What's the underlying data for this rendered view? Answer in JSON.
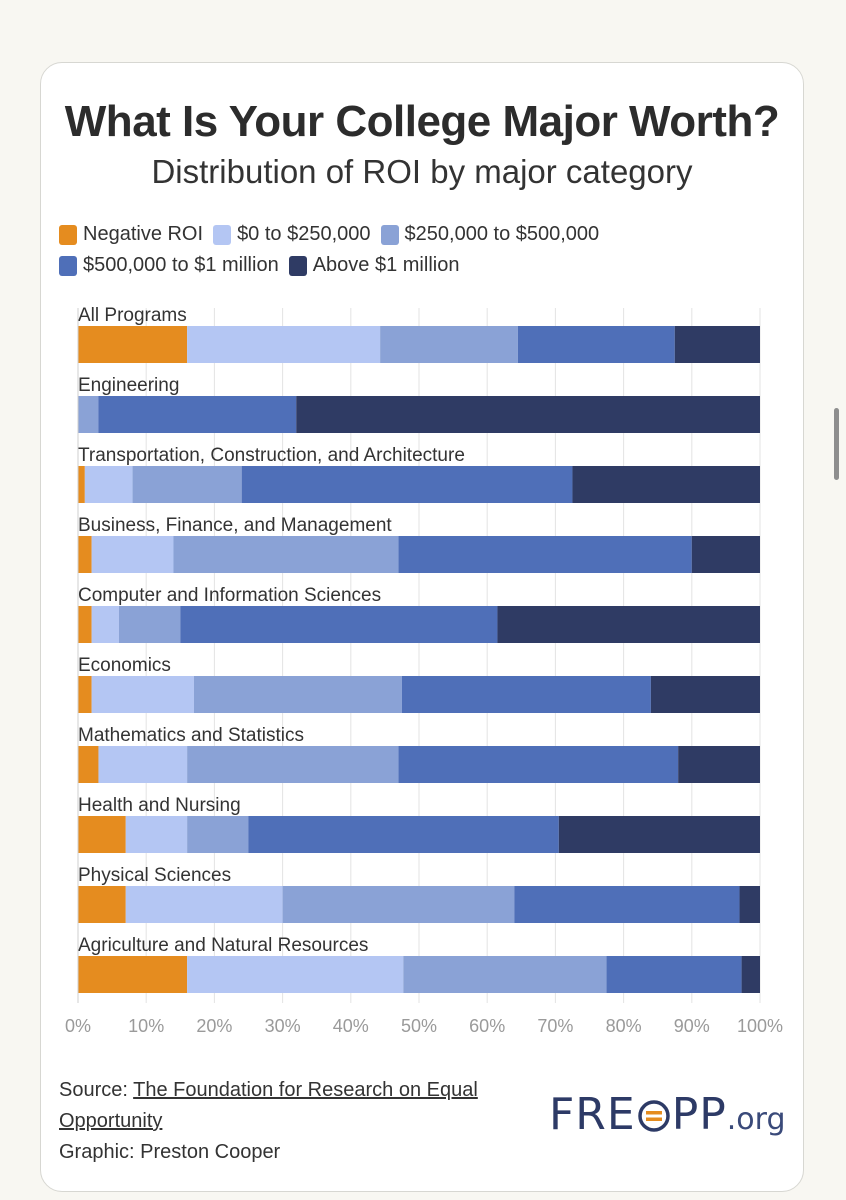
{
  "title": "What Is Your College Major Worth?",
  "subtitle": "Distribution of ROI by major category",
  "colors": {
    "negative": "#e58c1f",
    "zero_250k": "#b4c6f3",
    "250k_500k": "#8aa2d6",
    "500k_1m": "#4f6fb8",
    "above_1m": "#2f3b64",
    "axis_text": "#9a9a9a",
    "gridline": "#e3e3e3"
  },
  "legend": [
    {
      "label": "Negative ROI",
      "color": "#e58c1f"
    },
    {
      "label": "$0 to $250,000",
      "color": "#b4c6f3"
    },
    {
      "label": "$250,000 to $500,000",
      "color": "#8aa2d6"
    },
    {
      "label": "$500,000 to $1 million",
      "color": "#4f6fb8"
    },
    {
      "label": "Above $1 million",
      "color": "#2f3b64"
    }
  ],
  "chart_data": {
    "type": "bar",
    "orientation": "horizontal",
    "stacked": true,
    "title": "What Is Your College Major Worth?",
    "subtitle": "Distribution of ROI by major category",
    "xlabel": "",
    "ylabel": "",
    "xlim": [
      0,
      100
    ],
    "x_ticks": [
      "0%",
      "10%",
      "20%",
      "30%",
      "40%",
      "50%",
      "60%",
      "70%",
      "80%",
      "90%",
      "100%"
    ],
    "grid": true,
    "legend_position": "top",
    "categories": [
      "All Programs",
      "Engineering",
      "Transportation, Construction, and Architecture",
      "Business, Finance, and Management",
      "Computer and Information Sciences",
      "Economics",
      "Mathematics and Statistics",
      "Health and Nursing",
      "Physical Sciences",
      "Agriculture and Natural Resources"
    ],
    "series": [
      {
        "name": "Negative ROI",
        "values": [
          16,
          0,
          1,
          2,
          2,
          2,
          3,
          7,
          7,
          16
        ]
      },
      {
        "name": "$0 to $250,000",
        "values": [
          28.3,
          0,
          7,
          12,
          4,
          15,
          13,
          9,
          23,
          31.7
        ]
      },
      {
        "name": "$250,000 to $500,000",
        "values": [
          20.2,
          3,
          16,
          33,
          9,
          30.5,
          31,
          9,
          34,
          29.8
        ]
      },
      {
        "name": "$500,000 to $1 million",
        "values": [
          23,
          29,
          48.5,
          43,
          46.5,
          36.5,
          41,
          45.5,
          33,
          19.8
        ]
      },
      {
        "name": "Above $1 million",
        "values": [
          12.5,
          68,
          27.5,
          10,
          38.5,
          16,
          12,
          29.5,
          3,
          2.7
        ]
      }
    ]
  },
  "footer": {
    "source_prefix": "Source: ",
    "source_link": "The Foundation for Research on Equal Opportunity",
    "graphic_credit": "Graphic: Preston Cooper"
  },
  "logo": {
    "left_text": "FRE",
    "right_text": "PP",
    "suffix": ".org"
  }
}
